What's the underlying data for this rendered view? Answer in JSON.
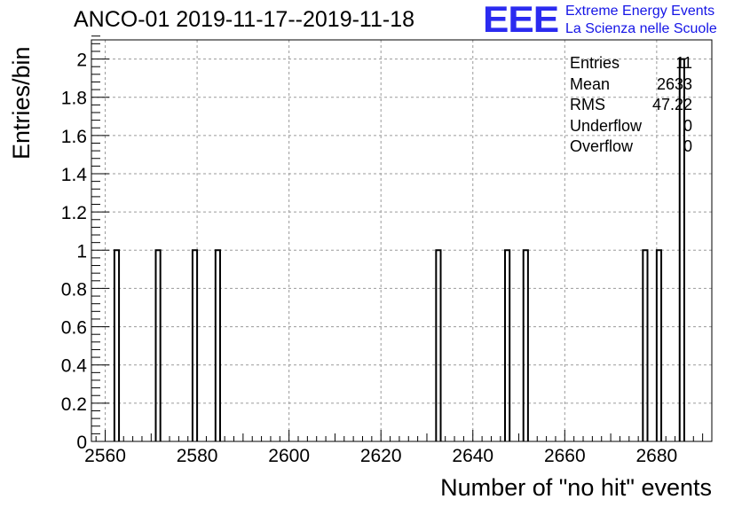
{
  "header": {
    "title": "ANCO-01 2019-11-17--2019-11-18",
    "logo_mark": "EEE",
    "logo_line1": "Extreme Energy Events",
    "logo_line2": "La Scienza nelle Scuole"
  },
  "stats": [
    {
      "label": "Entries",
      "value": "11"
    },
    {
      "label": "Mean",
      "value": "2633"
    },
    {
      "label": "RMS",
      "value": "47.22"
    },
    {
      "label": "Underflow",
      "value": "0"
    },
    {
      "label": "Overflow",
      "value": "0"
    }
  ],
  "chart_data": {
    "type": "bar",
    "histogram": true,
    "title": "ANCO-01 2019-11-17--2019-11-18",
    "xlabel": "Number of \"no hit\" events",
    "ylabel": "Entries/bin",
    "xlim": [
      2557,
      2692
    ],
    "ylim": [
      0,
      2.1
    ],
    "bin_width": 1,
    "x_ticks": [
      2560,
      2580,
      2600,
      2620,
      2640,
      2660,
      2680
    ],
    "x_tick_labels": [
      "2560",
      "2580",
      "2600",
      "2620",
      "2640",
      "2660",
      "2680"
    ],
    "y_ticks": [
      0,
      0.2,
      0.4,
      0.6,
      0.8,
      1,
      1.2,
      1.4,
      1.6,
      1.8,
      2
    ],
    "y_tick_labels": [
      "0",
      "0.2",
      "0.4",
      "0.6",
      "0.8",
      "1",
      "1.2",
      "1.4",
      "1.6",
      "1.8",
      "2"
    ],
    "grid": true,
    "bins": [
      {
        "x": 2562,
        "value": 1
      },
      {
        "x": 2571,
        "value": 1
      },
      {
        "x": 2579,
        "value": 1
      },
      {
        "x": 2584,
        "value": 1
      },
      {
        "x": 2632,
        "value": 1
      },
      {
        "x": 2647,
        "value": 1
      },
      {
        "x": 2651,
        "value": 1
      },
      {
        "x": 2677,
        "value": 1
      },
      {
        "x": 2680,
        "value": 1
      },
      {
        "x": 2685,
        "value": 2
      }
    ]
  }
}
